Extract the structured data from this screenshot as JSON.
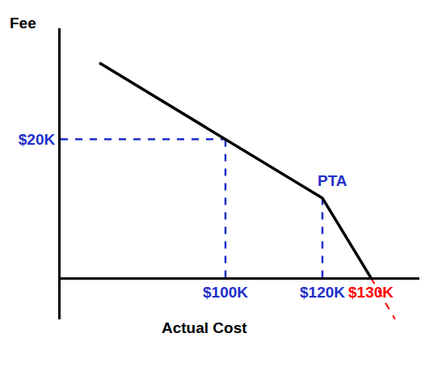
{
  "chart_data": {
    "type": "line",
    "x_label": "Actual Cost",
    "y_label": "Fee",
    "xlim": [
      66,
      140
    ],
    "ylim": [
      -6,
      36
    ],
    "xticks": [
      {
        "value": 100,
        "label": "$100K"
      },
      {
        "value": 120,
        "label": "$120K"
      },
      {
        "value": 130,
        "label": "$130K"
      }
    ],
    "yticks": [
      {
        "value": 20,
        "label": "$20K"
      }
    ],
    "grid": false,
    "series": [
      {
        "x": [
          74,
          100,
          120,
          130
        ],
        "values": [
          31,
          20,
          11.5,
          0
        ],
        "color": "#000000",
        "line_style": "solid"
      },
      {
        "x": [
          130,
          135
        ],
        "values": [
          0,
          -6
        ],
        "color": "#ff0000",
        "line_style": "dash"
      }
    ],
    "annotations": [
      {
        "text": "PTA",
        "x": 120,
        "y": 11.5
      }
    ]
  }
}
